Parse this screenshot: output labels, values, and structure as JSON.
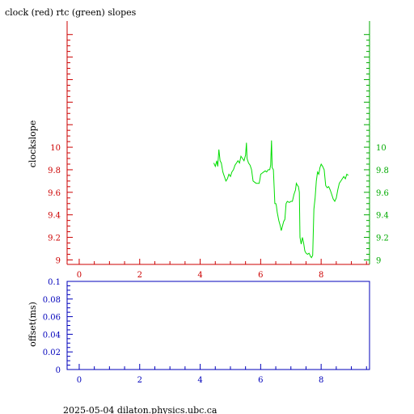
{
  "chart_data": [
    {
      "type": "line",
      "title": "clock (red) rtc (green) slopes",
      "xlabel": "",
      "ylabel": "clockslope",
      "xlim": [
        -0.4,
        9.6
      ],
      "ylim": [
        8.96,
        11.12
      ],
      "x_ticks": [
        0,
        2,
        4,
        6,
        8
      ],
      "x_tick_labels": [
        "0",
        "2",
        "4",
        "6",
        "8"
      ],
      "y_ticks": [
        9,
        9.2,
        9.4,
        9.6,
        9.8,
        10
      ],
      "y_tick_labels_left": [
        "9",
        "9.2",
        "9.4",
        "9.6",
        "9.8",
        "10"
      ],
      "y_tick_labels_right": [
        "9",
        "9.2",
        "9.4",
        "9.6",
        "9.8",
        "10"
      ],
      "axis_colors": {
        "left": "#cc0000",
        "right": "#00aa00",
        "x": "#cc0000"
      },
      "series": [
        {
          "color": "#00dd00",
          "points": [
            [
              4.45,
              9.86
            ],
            [
              4.5,
              9.83
            ],
            [
              4.55,
              9.88
            ],
            [
              4.58,
              9.83
            ],
            [
              4.62,
              9.98
            ],
            [
              4.66,
              9.88
            ],
            [
              4.7,
              9.86
            ],
            [
              4.75,
              9.78
            ],
            [
              4.8,
              9.74
            ],
            [
              4.85,
              9.7
            ],
            [
              4.9,
              9.72
            ],
            [
              4.95,
              9.76
            ],
            [
              5.0,
              9.74
            ],
            [
              5.05,
              9.78
            ],
            [
              5.1,
              9.8
            ],
            [
              5.15,
              9.84
            ],
            [
              5.2,
              9.86
            ],
            [
              5.25,
              9.88
            ],
            [
              5.3,
              9.86
            ],
            [
              5.35,
              9.92
            ],
            [
              5.4,
              9.9
            ],
            [
              5.45,
              9.88
            ],
            [
              5.5,
              9.93
            ],
            [
              5.53,
              10.04
            ],
            [
              5.55,
              9.9
            ],
            [
              5.6,
              9.86
            ],
            [
              5.65,
              9.84
            ],
            [
              5.7,
              9.8
            ],
            [
              5.75,
              9.7
            ],
            [
              5.8,
              9.69
            ],
            [
              5.85,
              9.68
            ],
            [
              5.9,
              9.68
            ],
            [
              5.95,
              9.68
            ],
            [
              5.98,
              9.72
            ],
            [
              6.0,
              9.76
            ],
            [
              6.05,
              9.77
            ],
            [
              6.1,
              9.78
            ],
            [
              6.15,
              9.79
            ],
            [
              6.2,
              9.78
            ],
            [
              6.25,
              9.8
            ],
            [
              6.3,
              9.8
            ],
            [
              6.33,
              9.84
            ],
            [
              6.36,
              10.06
            ],
            [
              6.38,
              9.82
            ],
            [
              6.42,
              9.8
            ],
            [
              6.45,
              9.62
            ],
            [
              6.47,
              9.5
            ],
            [
              6.5,
              9.5
            ],
            [
              6.52,
              9.48
            ],
            [
              6.55,
              9.42
            ],
            [
              6.6,
              9.35
            ],
            [
              6.65,
              9.3
            ],
            [
              6.68,
              9.26
            ],
            [
              6.72,
              9.3
            ],
            [
              6.76,
              9.34
            ],
            [
              6.8,
              9.36
            ],
            [
              6.84,
              9.5
            ],
            [
              6.88,
              9.52
            ],
            [
              6.95,
              9.51
            ],
            [
              7.0,
              9.52
            ],
            [
              7.05,
              9.52
            ],
            [
              7.1,
              9.58
            ],
            [
              7.15,
              9.62
            ],
            [
              7.18,
              9.68
            ],
            [
              7.22,
              9.66
            ],
            [
              7.25,
              9.65
            ],
            [
              7.28,
              9.6
            ],
            [
              7.3,
              9.2
            ],
            [
              7.34,
              9.14
            ],
            [
              7.38,
              9.2
            ],
            [
              7.42,
              9.15
            ],
            [
              7.46,
              9.08
            ],
            [
              7.5,
              9.06
            ],
            [
              7.55,
              9.05
            ],
            [
              7.6,
              9.06
            ],
            [
              7.65,
              9.03
            ],
            [
              7.68,
              9.02
            ],
            [
              7.72,
              9.04
            ],
            [
              7.76,
              9.45
            ],
            [
              7.8,
              9.55
            ],
            [
              7.84,
              9.7
            ],
            [
              7.88,
              9.78
            ],
            [
              7.92,
              9.76
            ],
            [
              7.96,
              9.82
            ],
            [
              8.0,
              9.85
            ],
            [
              8.05,
              9.83
            ],
            [
              8.1,
              9.8
            ],
            [
              8.15,
              9.66
            ],
            [
              8.2,
              9.64
            ],
            [
              8.25,
              9.65
            ],
            [
              8.3,
              9.62
            ],
            [
              8.35,
              9.58
            ],
            [
              8.4,
              9.54
            ],
            [
              8.45,
              9.52
            ],
            [
              8.5,
              9.55
            ],
            [
              8.55,
              9.62
            ],
            [
              8.6,
              9.68
            ],
            [
              8.65,
              9.7
            ],
            [
              8.7,
              9.72
            ],
            [
              8.75,
              9.74
            ],
            [
              8.8,
              9.72
            ],
            [
              8.85,
              9.76
            ],
            [
              8.9,
              9.75
            ]
          ]
        }
      ]
    },
    {
      "type": "line",
      "title": "",
      "xlabel": "",
      "ylabel": "offset(ms)",
      "xlim": [
        -0.4,
        9.6
      ],
      "ylim": [
        0,
        0.1
      ],
      "x_ticks": [
        0,
        2,
        4,
        6,
        8
      ],
      "x_tick_labels": [
        "0",
        "2",
        "4",
        "6",
        "8"
      ],
      "y_ticks": [
        0,
        0.02,
        0.04,
        0.06,
        0.08,
        0.1
      ],
      "y_tick_labels": [
        "0",
        "0.02",
        "0.04",
        "0.06",
        "0.08",
        "0.1"
      ],
      "axis_color": "#0000bb",
      "series": []
    }
  ],
  "footer": "2025-05-04  dilaton.physics.ubc.ca"
}
